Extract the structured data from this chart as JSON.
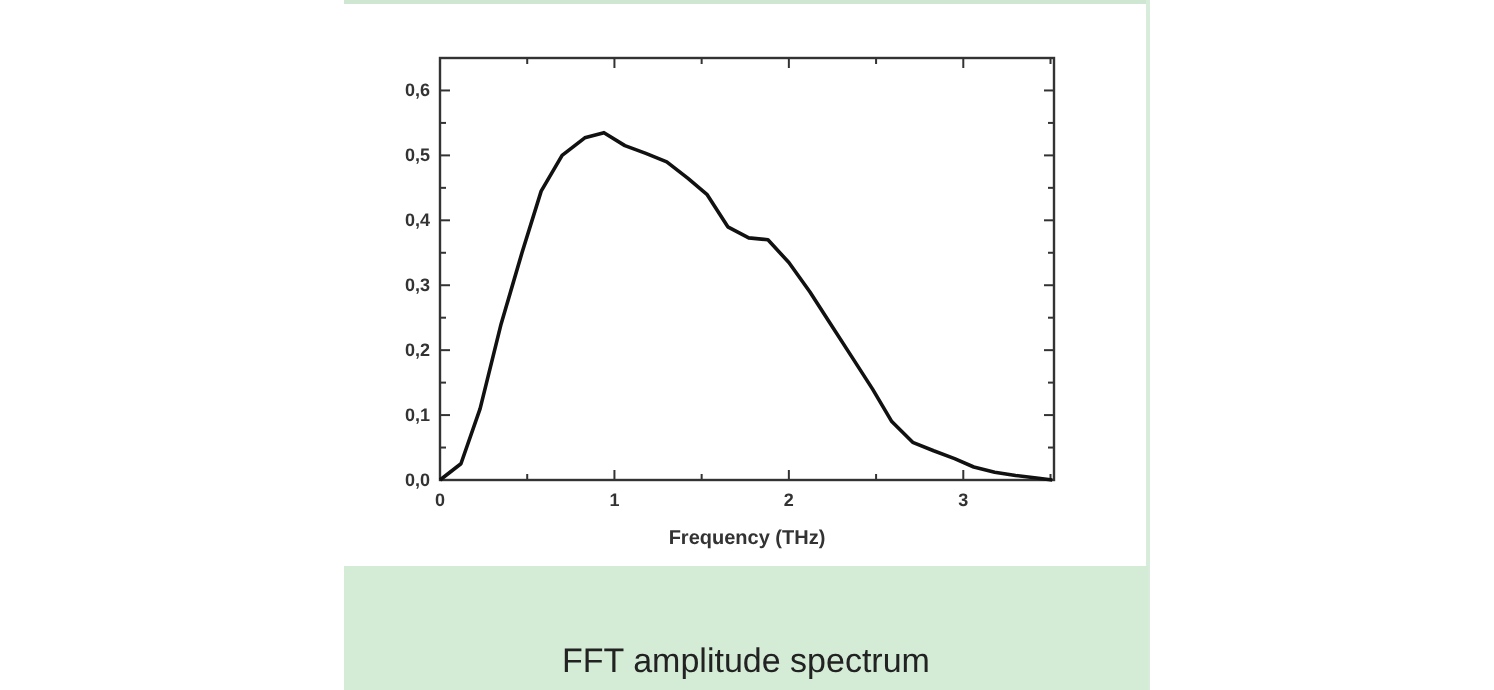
{
  "chart_data": {
    "type": "line",
    "xlabel": "Frequency (THz)",
    "annotations": [
      "FFT amplitude spectrum"
    ],
    "x": [
      0,
      0.12,
      0.23,
      0.35,
      0.47,
      0.58,
      0.7,
      0.83,
      0.94,
      1.06,
      1.18,
      1.3,
      1.42,
      1.53,
      1.65,
      1.77,
      1.88,
      2.0,
      2.12,
      2.24,
      2.36,
      2.48,
      2.59,
      2.71,
      2.83,
      2.95,
      3.06,
      3.18,
      3.3,
      3.42,
      3.51
    ],
    "series": [
      {
        "color": "#111111",
        "values": [
          0,
          0.025,
          0.11,
          0.24,
          0.35,
          0.445,
          0.5,
          0.527,
          0.535,
          0.515,
          0.503,
          0.49,
          0.465,
          0.44,
          0.39,
          0.373,
          0.37,
          0.335,
          0.29,
          0.24,
          0.19,
          0.14,
          0.09,
          0.058,
          0.045,
          0.033,
          0.02,
          0.012,
          0.007,
          0.003,
          0
        ]
      }
    ],
    "xlim": [
      0,
      3.52
    ],
    "ylim": [
      0,
      0.65
    ],
    "xticks": [
      0,
      {
        "value": 0.5,
        "label": null
      },
      1,
      {
        "value": 1.5,
        "label": null
      },
      2,
      {
        "value": 2.5,
        "label": null
      },
      3,
      {
        "value": 3.5,
        "label": null
      }
    ],
    "yticks": [
      {
        "value": 0,
        "label": "0,0"
      },
      {
        "value": 0.05,
        "label": null
      },
      {
        "value": 0.1,
        "label": "0,1"
      },
      {
        "value": 0.15,
        "label": null
      },
      {
        "value": 0.2,
        "label": "0,2"
      },
      {
        "value": 0.25,
        "label": null
      },
      {
        "value": 0.3,
        "label": "0,3"
      },
      {
        "value": 0.35,
        "label": null
      },
      {
        "value": 0.4,
        "label": "0,4"
      },
      {
        "value": 0.45,
        "label": null
      },
      {
        "value": 0.5,
        "label": "0,5"
      },
      {
        "value": 0.55,
        "label": null
      },
      {
        "value": 0.6,
        "label": "0,6"
      }
    ],
    "grid": false,
    "marker": "none",
    "line_style": "solid"
  }
}
